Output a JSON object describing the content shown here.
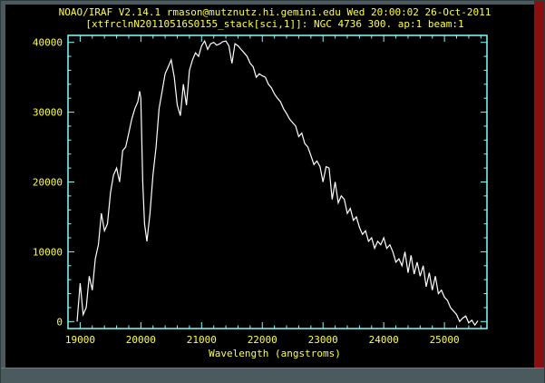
{
  "header": {
    "line1": "NOAO/IRAF V2.14.1 rmason@mutznutz.hi.gemini.edu Wed 20:00:02 26-Oct-2011",
    "line2": "[xtfrclnN20110516S0155_stack[sci,1]]: NGC 4736 300. ap:1 beam:1"
  },
  "colors": {
    "background": "#000000",
    "axes": "#7fffff",
    "text": "#ffff40",
    "spectrum": "#ffffff",
    "frame": "#4a5a5e"
  },
  "chart_data": {
    "type": "line",
    "title": "",
    "xlabel": "Wavelength (angstroms)",
    "ylabel": "",
    "xlim": [
      18800,
      25700
    ],
    "ylim": [
      -1000,
      41000
    ],
    "grid": false,
    "x_ticks": [
      "19000",
      "20000",
      "21000",
      "22000",
      "23000",
      "24000",
      "25000"
    ],
    "y_ticks": [
      "0",
      "10000",
      "20000",
      "30000",
      "40000"
    ],
    "series": [
      {
        "x": [
          18950,
          19000,
          19050,
          19100,
          19150,
          19200,
          19250,
          19300,
          19350,
          19400,
          19450,
          19500,
          19550,
          19600,
          19650,
          19700,
          19750,
          19800,
          19850,
          19900,
          19950,
          19980,
          20000,
          20030,
          20060,
          20100,
          20150,
          20200,
          20250,
          20300,
          20350,
          20400,
          20450,
          20500,
          20550,
          20600,
          20650,
          20700,
          20750,
          20800,
          20850,
          20900,
          20950,
          21000,
          21050,
          21100,
          21150,
          21200,
          21250,
          21300,
          21350,
          21400,
          21450,
          21500,
          21550,
          21600,
          21650,
          21700,
          21750,
          21800,
          21850,
          21900,
          21950,
          22000,
          22050,
          22100,
          22150,
          22200,
          22250,
          22300,
          22350,
          22400,
          22450,
          22500,
          22550,
          22600,
          22650,
          22700,
          22750,
          22800,
          22850,
          22900,
          22950,
          23000,
          23050,
          23100,
          23150,
          23200,
          23250,
          23300,
          23350,
          23400,
          23450,
          23500,
          23550,
          23600,
          23650,
          23700,
          23750,
          23800,
          23850,
          23900,
          23950,
          24000,
          24050,
          24100,
          24150,
          24200,
          24250,
          24300,
          24350,
          24400,
          24450,
          24500,
          24550,
          24600,
          24650,
          24700,
          24750,
          24800,
          24850,
          24900,
          24950,
          25000,
          25050,
          25100,
          25150,
          25200,
          25250,
          25300,
          25350,
          25400,
          25450,
          25500,
          25550
        ],
        "y": [
          0,
          5500,
          1000,
          2000,
          6500,
          4500,
          9000,
          11000,
          15500,
          13000,
          14000,
          18500,
          21000,
          22000,
          20000,
          24500,
          25000,
          27000,
          29000,
          30500,
          31500,
          33000,
          32000,
          20000,
          14000,
          11500,
          15500,
          21000,
          25000,
          30500,
          33000,
          35500,
          36500,
          37500,
          35000,
          31000,
          29500,
          34000,
          31000,
          36000,
          37500,
          38500,
          38000,
          39500,
          40200,
          39000,
          39800,
          40000,
          39600,
          39800,
          40100,
          40200,
          39500,
          37000,
          39800,
          39500,
          39000,
          38500,
          38000,
          37000,
          36500,
          35000,
          35500,
          35200,
          35000,
          34000,
          33500,
          32600,
          32000,
          31500,
          30500,
          29800,
          29000,
          28500,
          28000,
          26500,
          27000,
          25500,
          25000,
          23800,
          22500,
          23000,
          22200,
          20000,
          22200,
          22000,
          17500,
          20000,
          17000,
          18000,
          17500,
          15500,
          16200,
          14500,
          15000,
          13500,
          12500,
          13000,
          11500,
          12000,
          10500,
          11500,
          11000,
          12000,
          10500,
          11000,
          10000,
          8500,
          9000,
          8000,
          10000,
          7000,
          9500,
          6800,
          8500,
          6500,
          8000,
          5000,
          7000,
          4500,
          6500,
          4000,
          4500,
          3500,
          3000,
          2000,
          1500,
          1000,
          0,
          500,
          800,
          -200,
          200,
          -500,
          100
        ]
      }
    ]
  }
}
